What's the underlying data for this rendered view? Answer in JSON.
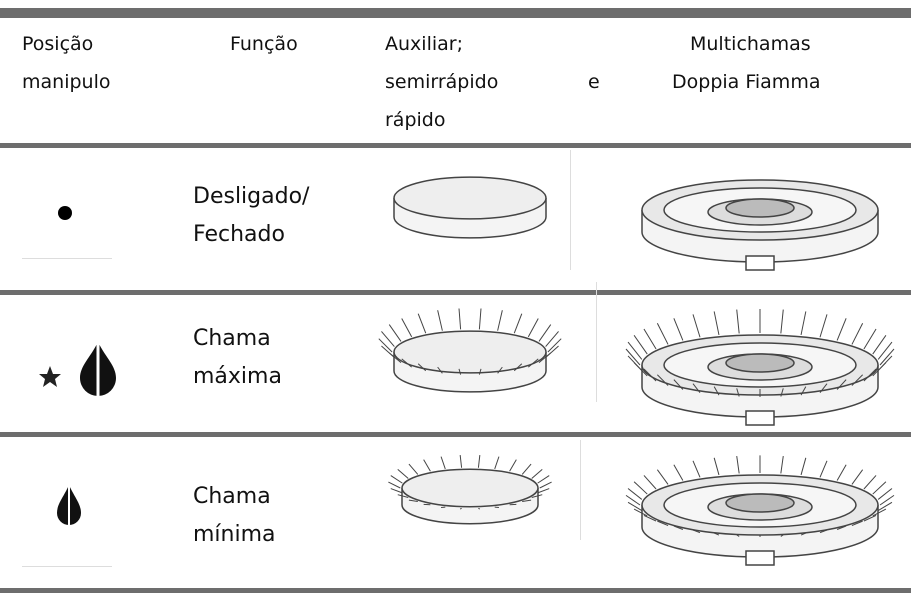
{
  "table": {
    "header": [
      [
        "Posição",
        "manipulo"
      ],
      [
        "Função"
      ],
      [
        "Auxiliar;",
        "semirrápido",
        "e",
        "rápido"
      ],
      [
        "Multichamas",
        "Doppia Fiamma"
      ]
    ],
    "rows": [
      [
        "Desligado/",
        "Fechado"
      ],
      [
        "Chama",
        "máxima"
      ],
      [
        "Chama",
        "mínima"
      ]
    ]
  }
}
